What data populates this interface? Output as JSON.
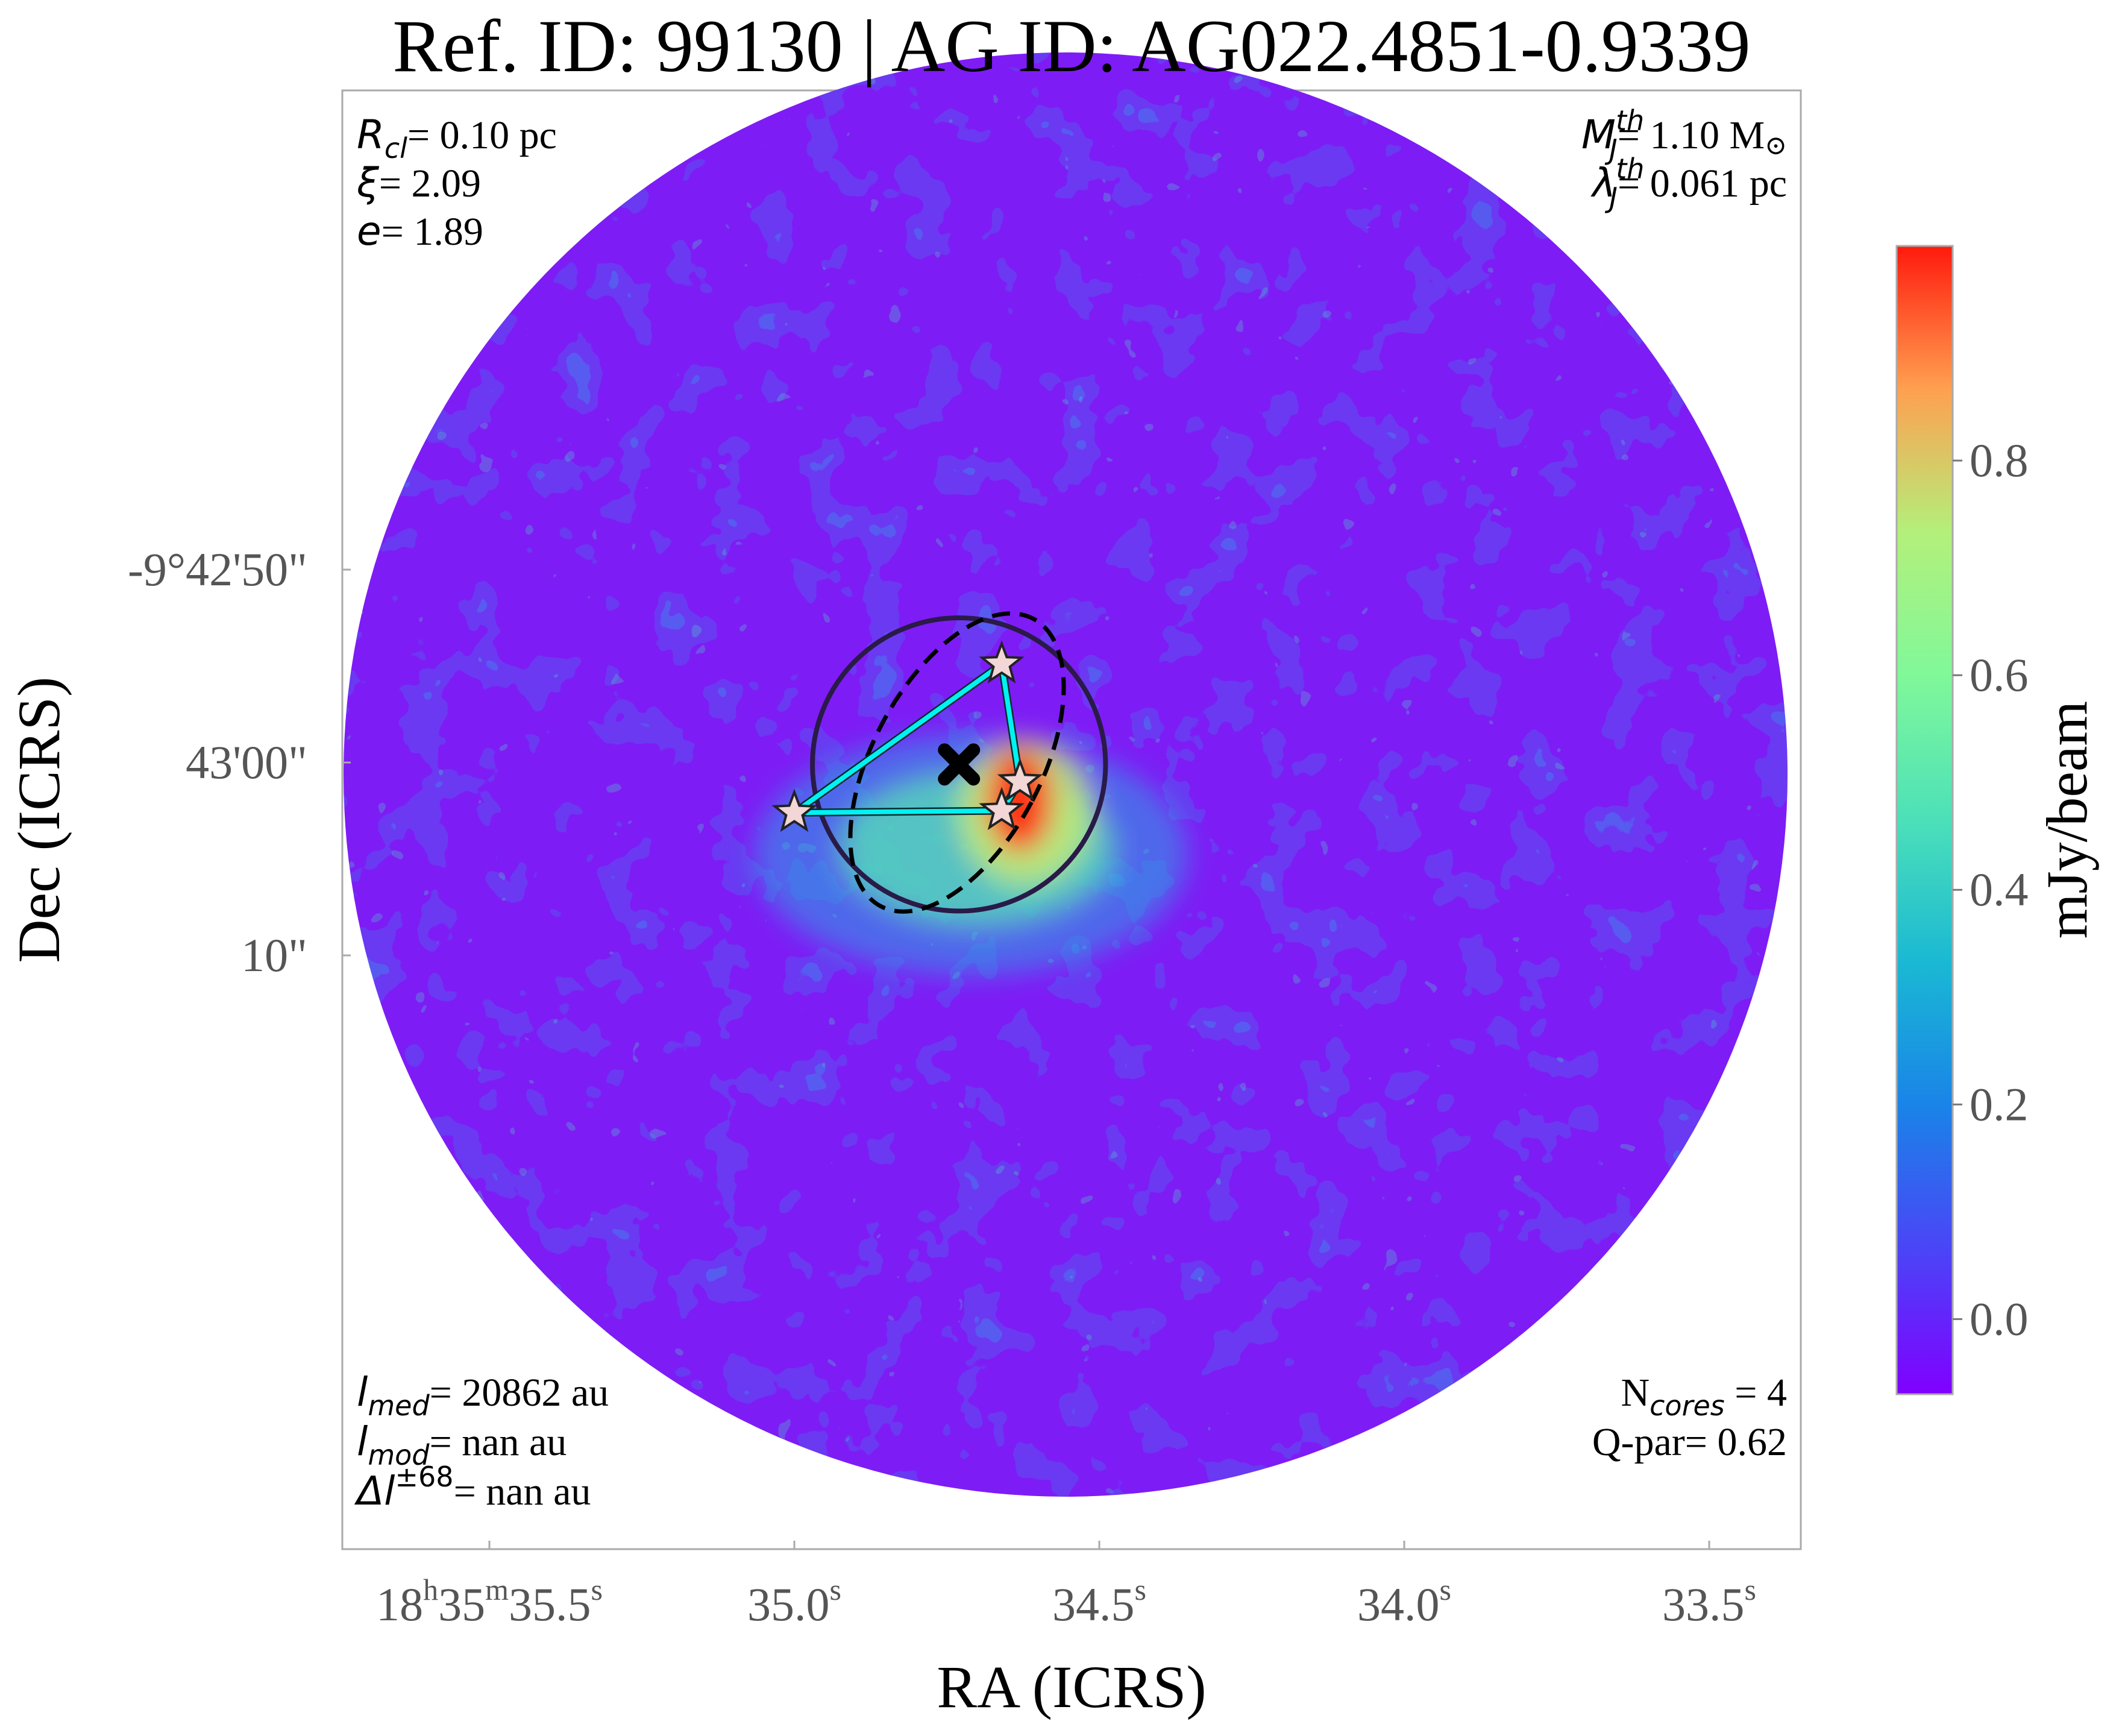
{
  "chart_data": {
    "type": "heatmap",
    "title": "Ref. ID: 99130 | AG ID: AG022.4851-0.9339",
    "xlabel": "RA (ICRS)",
    "ylabel": "Dec (ICRS)",
    "x_ticks": [
      {
        "h": "18",
        "hs": "h",
        "m": "35",
        "ms": "m",
        "s": "35.5",
        "ss": "s"
      },
      {
        "s": "35.0",
        "ss": "s"
      },
      {
        "s": "34.5",
        "ss": "s"
      },
      {
        "s": "34.0",
        "ss": "s"
      },
      {
        "s": "33.5",
        "ss": "s"
      }
    ],
    "x_tick_values_s": [
      35.5,
      35.0,
      34.5,
      34.0,
      33.5
    ],
    "y_ticks": [
      "-9°42'50\"",
      "43'00\"",
      "10\""
    ],
    "y_tick_values_arcsec": [
      -50,
      -60,
      -70
    ],
    "colorbar": {
      "label": "mJy/beam",
      "ticks": [
        "0.0",
        "0.2",
        "0.4",
        "0.6",
        "0.8"
      ],
      "tick_values": [
        0.0,
        0.2,
        0.4,
        0.6,
        0.8
      ],
      "vmin": -0.07,
      "vmax": 1.0,
      "cmap": "rainbow"
    },
    "annotations": {
      "top_left": [
        {
          "label": "R",
          "sub": "cl",
          "value": "= 0.10 pc"
        },
        {
          "label": "ξ",
          "value": "= 2.09"
        },
        {
          "label": "e",
          "value": "= 1.89"
        }
      ],
      "top_right": [
        {
          "label": "M",
          "sup": "th",
          "sub": "J",
          "value": "= 1.10 M",
          "tail": "⊙"
        },
        {
          "label": "λ",
          "sup": "th",
          "sub": "J",
          "value": "= 0.061 pc"
        }
      ],
      "bottom_left": [
        {
          "label": "l",
          "sub": "med",
          "value": "= 20862 au"
        },
        {
          "label": "l",
          "sub": "mod",
          "value": "= nan au"
        },
        {
          "label": "Δl",
          "sup": "±68",
          "value": "= nan au"
        }
      ],
      "bottom_right": [
        {
          "label": "N",
          "sub": "cores",
          "value": " = 4"
        },
        {
          "label": "Q-par",
          "value": "= 0.62"
        }
      ]
    },
    "cores_ra_s": [
      34.66,
      34.63,
      35.0,
      34.66
    ],
    "cores_dec_arcsec": [
      -54.9,
      -61.0,
      -62.6,
      -62.5
    ],
    "mst_edges": [
      [
        0,
        1
      ],
      [
        1,
        3
      ],
      [
        3,
        2
      ],
      [
        2,
        0
      ]
    ],
    "clump_center": {
      "ra_s": 34.73,
      "dec_arcsec": -60.1
    },
    "clump_radius_arcsec": 7.6,
    "colors": {
      "mst_line": "#00f2f2",
      "clump_circle": "#2a1a48",
      "ellipse": "#000000",
      "star_fill": "#f3d6d6",
      "frame": "#aaaaaa",
      "tick_text": "#555555"
    }
  }
}
